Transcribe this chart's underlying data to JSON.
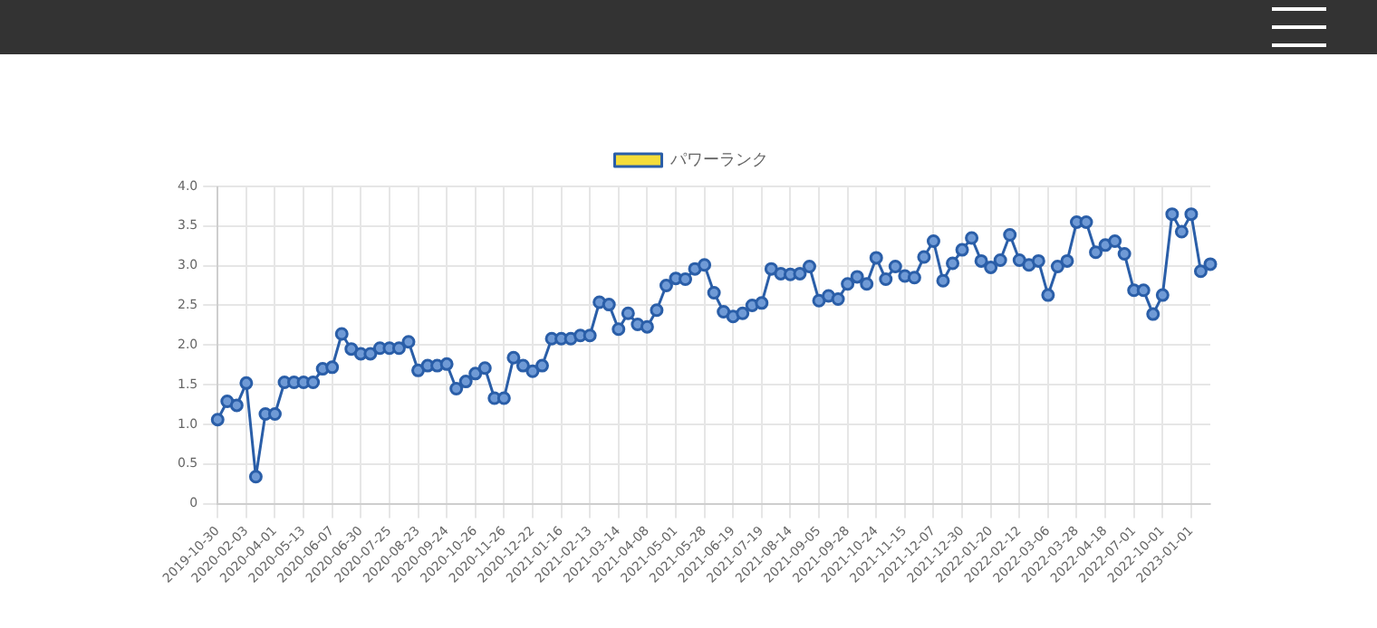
{
  "chart_data": {
    "type": "line",
    "categories": [
      "2019-10-30",
      null,
      null,
      "2020-02-03",
      null,
      null,
      "2020-04-01",
      null,
      null,
      "2020-05-13",
      null,
      null,
      "2020-06-07",
      null,
      null,
      "2020-06-30",
      null,
      null,
      "2020-07-25",
      null,
      null,
      "2020-08-23",
      null,
      null,
      "2020-09-24",
      null,
      null,
      "2020-10-26",
      null,
      null,
      "2020-11-26",
      null,
      null,
      "2020-12-22",
      null,
      null,
      "2021-01-16",
      null,
      null,
      "2021-02-13",
      null,
      null,
      "2021-03-14",
      null,
      null,
      "2021-04-08",
      null,
      null,
      "2021-05-01",
      null,
      null,
      "2021-05-28",
      null,
      null,
      "2021-06-19",
      null,
      null,
      "2021-07-19",
      null,
      null,
      "2021-08-14",
      null,
      null,
      "2021-09-05",
      null,
      null,
      "2021-09-28",
      null,
      null,
      "2021-10-24",
      null,
      null,
      "2021-11-15",
      null,
      null,
      "2021-12-07",
      null,
      null,
      "2021-12-30",
      null,
      null,
      "2022-01-20",
      null,
      null,
      "2022-02-12",
      null,
      null,
      "2022-03-06",
      null,
      null,
      "2022-03-28",
      null,
      null,
      "2022-04-18",
      null,
      null,
      "2022-07-01",
      null,
      null,
      "2022-10-01",
      null,
      null,
      "2023-01-01",
      null,
      null
    ],
    "series": [
      {
        "name": "パワーランク",
        "color": "#2a5ea8",
        "values": [
          1.06,
          1.29,
          1.24,
          1.52,
          0.34,
          1.13,
          1.13,
          1.53,
          1.53,
          1.53,
          1.53,
          1.7,
          1.72,
          2.14,
          1.95,
          1.89,
          1.89,
          1.96,
          1.96,
          1.96,
          2.04,
          1.68,
          1.74,
          1.74,
          1.76,
          1.45,
          1.54,
          1.64,
          1.71,
          1.33,
          1.33,
          1.84,
          1.74,
          1.67,
          1.74,
          2.08,
          2.08,
          2.08,
          2.12,
          2.12,
          2.54,
          2.51,
          2.2,
          2.4,
          2.26,
          2.23,
          2.44,
          2.75,
          2.84,
          2.83,
          2.96,
          3.01,
          2.66,
          2.42,
          2.36,
          2.4,
          2.5,
          2.53,
          2.96,
          2.9,
          2.89,
          2.9,
          2.99,
          2.56,
          2.62,
          2.58,
          2.77,
          2.86,
          2.77,
          3.1,
          2.83,
          2.99,
          2.87,
          2.85,
          3.11,
          3.31,
          2.81,
          3.03,
          3.2,
          3.35,
          3.06,
          2.98,
          3.07,
          3.39,
          3.07,
          3.01,
          3.06,
          2.63,
          2.99,
          3.06,
          3.55,
          3.55,
          3.17,
          3.26,
          3.31,
          3.15,
          2.69,
          2.69,
          2.39,
          2.63,
          3.65,
          3.43,
          3.65,
          2.93,
          3.02
        ]
      }
    ],
    "ylim": [
      0,
      4
    ],
    "yticks": [
      0,
      {
        "value": 0.5,
        "label": "0.5"
      },
      {
        "value": 1,
        "label": "1.0"
      },
      {
        "value": 1.5,
        "label": "1.5"
      },
      {
        "value": 2,
        "label": "2.0"
      },
      {
        "value": 2.5,
        "label": "2.5"
      },
      {
        "value": 3,
        "label": "3.0"
      },
      {
        "value": 3.5,
        "label": "3.5"
      },
      {
        "value": 4,
        "label": "4.0"
      }
    ],
    "grid": true,
    "legend": "top",
    "marker": "circle",
    "line_style": "solid"
  }
}
